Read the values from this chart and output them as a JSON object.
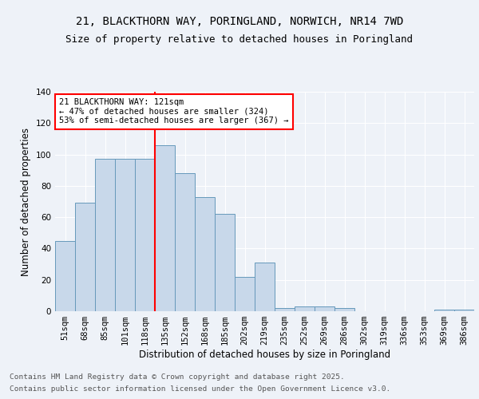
{
  "title_line1": "21, BLACKTHORN WAY, PORINGLAND, NORWICH, NR14 7WD",
  "title_line2": "Size of property relative to detached houses in Poringland",
  "xlabel": "Distribution of detached houses by size in Poringland",
  "ylabel": "Number of detached properties",
  "categories": [
    "51sqm",
    "68sqm",
    "85sqm",
    "101sqm",
    "118sqm",
    "135sqm",
    "152sqm",
    "168sqm",
    "185sqm",
    "202sqm",
    "219sqm",
    "235sqm",
    "252sqm",
    "269sqm",
    "286sqm",
    "302sqm",
    "319sqm",
    "336sqm",
    "353sqm",
    "369sqm",
    "386sqm"
  ],
  "values": [
    45,
    69,
    97,
    97,
    97,
    106,
    88,
    73,
    62,
    22,
    31,
    2,
    3,
    3,
    2,
    0,
    0,
    0,
    0,
    1,
    1
  ],
  "bar_color": "#c8d8ea",
  "bar_edge_color": "#6699bb",
  "vline_x_index": 4.5,
  "vline_color": "red",
  "annotation_title": "21 BLACKTHORN WAY: 121sqm",
  "annotation_line1": "← 47% of detached houses are smaller (324)",
  "annotation_line2": "53% of semi-detached houses are larger (367) →",
  "annotation_box_facecolor": "#ffffff",
  "annotation_box_edgecolor": "red",
  "ylim": [
    0,
    140
  ],
  "yticks": [
    0,
    20,
    40,
    60,
    80,
    100,
    120,
    140
  ],
  "bg_color": "#eef2f8",
  "grid_color": "#ffffff",
  "title_fontsize": 10,
  "subtitle_fontsize": 9,
  "axis_label_fontsize": 8.5,
  "tick_fontsize": 7.5,
  "annotation_fontsize": 7.5,
  "footer_fontsize": 6.8,
  "footer_line1": "Contains HM Land Registry data © Crown copyright and database right 2025.",
  "footer_line2": "Contains public sector information licensed under the Open Government Licence v3.0."
}
